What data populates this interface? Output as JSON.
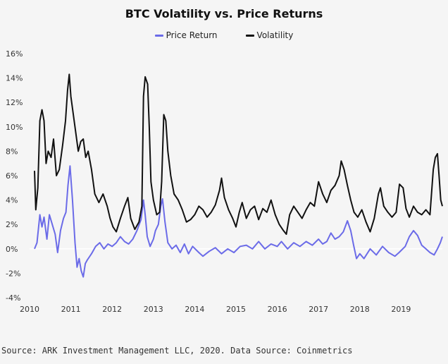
{
  "colors": {
    "background": "#f5f5f5",
    "price_return": "#6b6be8",
    "volatility": "#111111",
    "axis_text": "#333333",
    "zero_line": "#ffffff"
  },
  "chart_data": {
    "type": "line",
    "title": "BTC Volatility vs. Price Returns",
    "xlabel": "",
    "ylabel": "",
    "xlim": [
      2010.0,
      2020.0
    ],
    "ylim": [
      -4,
      16
    ],
    "x_ticks": [
      2010,
      2011,
      2012,
      2013,
      2014,
      2015,
      2016,
      2017,
      2018,
      2019
    ],
    "y_ticks": [
      -4,
      -2,
      0,
      2,
      4,
      6,
      8,
      10,
      12,
      14,
      16
    ],
    "y_tick_labels": [
      "-4%",
      "-2%",
      "0%",
      "2%",
      "4%",
      "6%",
      "8%",
      "10%",
      "12%",
      "14%",
      "16%"
    ],
    "grid": false,
    "legend_position": "top-center",
    "series": [
      {
        "name": "Price Return",
        "color": "#6b6be8",
        "points": [
          [
            2010.12,
            0.0
          ],
          [
            2010.18,
            0.5
          ],
          [
            2010.25,
            2.8
          ],
          [
            2010.3,
            1.8
          ],
          [
            2010.35,
            2.6
          ],
          [
            2010.42,
            0.8
          ],
          [
            2010.48,
            2.8
          ],
          [
            2010.55,
            2.0
          ],
          [
            2010.62,
            1.2
          ],
          [
            2010.68,
            -0.3
          ],
          [
            2010.75,
            1.5
          ],
          [
            2010.82,
            2.5
          ],
          [
            2010.88,
            3.0
          ],
          [
            2010.93,
            5.2
          ],
          [
            2010.98,
            6.8
          ],
          [
            2011.04,
            4.0
          ],
          [
            2011.1,
            0.5
          ],
          [
            2011.15,
            -1.5
          ],
          [
            2011.2,
            -0.8
          ],
          [
            2011.25,
            -1.8
          ],
          [
            2011.3,
            -2.3
          ],
          [
            2011.35,
            -1.2
          ],
          [
            2011.4,
            -0.9
          ],
          [
            2011.5,
            -0.4
          ],
          [
            2011.6,
            0.2
          ],
          [
            2011.7,
            0.5
          ],
          [
            2011.8,
            0.0
          ],
          [
            2011.9,
            0.4
          ],
          [
            2012.0,
            0.2
          ],
          [
            2012.1,
            0.5
          ],
          [
            2012.2,
            1.0
          ],
          [
            2012.3,
            0.6
          ],
          [
            2012.4,
            0.4
          ],
          [
            2012.5,
            0.8
          ],
          [
            2012.6,
            1.5
          ],
          [
            2012.7,
            2.4
          ],
          [
            2012.76,
            4.0
          ],
          [
            2012.8,
            2.8
          ],
          [
            2012.85,
            1.0
          ],
          [
            2012.92,
            0.2
          ],
          [
            2013.0,
            0.8
          ],
          [
            2013.05,
            1.5
          ],
          [
            2013.12,
            2.0
          ],
          [
            2013.18,
            3.5
          ],
          [
            2013.22,
            4.1
          ],
          [
            2013.28,
            2.2
          ],
          [
            2013.35,
            0.5
          ],
          [
            2013.45,
            0.0
          ],
          [
            2013.55,
            0.3
          ],
          [
            2013.65,
            -0.3
          ],
          [
            2013.75,
            0.4
          ],
          [
            2013.85,
            -0.4
          ],
          [
            2013.95,
            0.2
          ],
          [
            2014.1,
            -0.3
          ],
          [
            2014.2,
            -0.6
          ],
          [
            2014.35,
            -0.2
          ],
          [
            2014.5,
            0.1
          ],
          [
            2014.65,
            -0.4
          ],
          [
            2014.8,
            0.0
          ],
          [
            2014.95,
            -0.3
          ],
          [
            2015.1,
            0.2
          ],
          [
            2015.25,
            0.3
          ],
          [
            2015.4,
            0.0
          ],
          [
            2015.55,
            0.6
          ],
          [
            2015.7,
            0.0
          ],
          [
            2015.85,
            0.4
          ],
          [
            2016.0,
            0.2
          ],
          [
            2016.1,
            0.6
          ],
          [
            2016.25,
            0.0
          ],
          [
            2016.4,
            0.5
          ],
          [
            2016.55,
            0.2
          ],
          [
            2016.7,
            0.6
          ],
          [
            2016.85,
            0.3
          ],
          [
            2017.0,
            0.8
          ],
          [
            2017.1,
            0.4
          ],
          [
            2017.2,
            0.6
          ],
          [
            2017.3,
            1.3
          ],
          [
            2017.4,
            0.8
          ],
          [
            2017.5,
            1.0
          ],
          [
            2017.6,
            1.4
          ],
          [
            2017.7,
            2.3
          ],
          [
            2017.78,
            1.5
          ],
          [
            2017.85,
            0.3
          ],
          [
            2017.92,
            -0.8
          ],
          [
            2018.0,
            -0.4
          ],
          [
            2018.1,
            -0.8
          ],
          [
            2018.25,
            0.0
          ],
          [
            2018.4,
            -0.5
          ],
          [
            2018.55,
            0.2
          ],
          [
            2018.7,
            -0.3
          ],
          [
            2018.85,
            -0.6
          ],
          [
            2018.95,
            -0.3
          ],
          [
            2019.1,
            0.2
          ],
          [
            2019.2,
            1.0
          ],
          [
            2019.3,
            1.5
          ],
          [
            2019.4,
            1.1
          ],
          [
            2019.5,
            0.3
          ],
          [
            2019.6,
            0.0
          ],
          [
            2019.7,
            -0.3
          ],
          [
            2019.8,
            -0.5
          ],
          [
            2019.88,
            0.0
          ],
          [
            2019.95,
            0.5
          ],
          [
            2020.0,
            1.0
          ]
        ]
      },
      {
        "name": "Volatility",
        "color": "#111111",
        "points": [
          [
            2010.12,
            6.4
          ],
          [
            2010.15,
            3.2
          ],
          [
            2010.2,
            5.0
          ],
          [
            2010.25,
            10.5
          ],
          [
            2010.3,
            11.4
          ],
          [
            2010.35,
            10.5
          ],
          [
            2010.4,
            7.0
          ],
          [
            2010.45,
            8.0
          ],
          [
            2010.52,
            7.5
          ],
          [
            2010.58,
            9.0
          ],
          [
            2010.65,
            6.0
          ],
          [
            2010.72,
            6.5
          ],
          [
            2010.8,
            8.5
          ],
          [
            2010.87,
            10.5
          ],
          [
            2010.92,
            13.0
          ],
          [
            2010.96,
            14.3
          ],
          [
            2011.0,
            12.5
          ],
          [
            2011.06,
            11.0
          ],
          [
            2011.12,
            9.5
          ],
          [
            2011.18,
            8.0
          ],
          [
            2011.24,
            8.8
          ],
          [
            2011.3,
            9.0
          ],
          [
            2011.36,
            7.5
          ],
          [
            2011.42,
            8.0
          ],
          [
            2011.5,
            6.5
          ],
          [
            2011.58,
            4.5
          ],
          [
            2011.68,
            3.8
          ],
          [
            2011.78,
            4.5
          ],
          [
            2011.88,
            3.5
          ],
          [
            2011.95,
            2.5
          ],
          [
            2012.02,
            1.8
          ],
          [
            2012.1,
            1.4
          ],
          [
            2012.2,
            2.5
          ],
          [
            2012.3,
            3.5
          ],
          [
            2012.38,
            4.2
          ],
          [
            2012.45,
            2.5
          ],
          [
            2012.55,
            1.6
          ],
          [
            2012.65,
            2.2
          ],
          [
            2012.72,
            3.5
          ],
          [
            2012.76,
            12.5
          ],
          [
            2012.8,
            14.1
          ],
          [
            2012.86,
            13.5
          ],
          [
            2012.9,
            10.0
          ],
          [
            2012.94,
            5.5
          ],
          [
            2013.0,
            4.0
          ],
          [
            2013.08,
            2.8
          ],
          [
            2013.15,
            3.0
          ],
          [
            2013.2,
            5.5
          ],
          [
            2013.25,
            11.0
          ],
          [
            2013.3,
            10.5
          ],
          [
            2013.35,
            8.0
          ],
          [
            2013.42,
            6.0
          ],
          [
            2013.5,
            4.5
          ],
          [
            2013.6,
            4.0
          ],
          [
            2013.7,
            3.2
          ],
          [
            2013.8,
            2.2
          ],
          [
            2013.9,
            2.4
          ],
          [
            2014.0,
            2.8
          ],
          [
            2014.1,
            3.5
          ],
          [
            2014.2,
            3.2
          ],
          [
            2014.3,
            2.6
          ],
          [
            2014.4,
            3.0
          ],
          [
            2014.5,
            3.6
          ],
          [
            2014.6,
            4.8
          ],
          [
            2014.65,
            5.8
          ],
          [
            2014.72,
            4.2
          ],
          [
            2014.82,
            3.2
          ],
          [
            2014.92,
            2.5
          ],
          [
            2015.0,
            1.8
          ],
          [
            2015.08,
            3.0
          ],
          [
            2015.15,
            3.8
          ],
          [
            2015.25,
            2.5
          ],
          [
            2015.35,
            3.2
          ],
          [
            2015.45,
            3.5
          ],
          [
            2015.55,
            2.4
          ],
          [
            2015.65,
            3.3
          ],
          [
            2015.75,
            3.0
          ],
          [
            2015.85,
            4.0
          ],
          [
            2015.95,
            2.8
          ],
          [
            2016.05,
            2.0
          ],
          [
            2016.15,
            1.5
          ],
          [
            2016.22,
            1.2
          ],
          [
            2016.3,
            2.8
          ],
          [
            2016.4,
            3.5
          ],
          [
            2016.5,
            3.0
          ],
          [
            2016.6,
            2.5
          ],
          [
            2016.7,
            3.2
          ],
          [
            2016.8,
            3.8
          ],
          [
            2016.9,
            3.5
          ],
          [
            2017.0,
            5.5
          ],
          [
            2017.1,
            4.5
          ],
          [
            2017.2,
            3.8
          ],
          [
            2017.3,
            4.8
          ],
          [
            2017.4,
            5.2
          ],
          [
            2017.5,
            6.0
          ],
          [
            2017.55,
            7.2
          ],
          [
            2017.62,
            6.5
          ],
          [
            2017.7,
            5.2
          ],
          [
            2017.78,
            4.0
          ],
          [
            2017.86,
            3.0
          ],
          [
            2017.95,
            2.6
          ],
          [
            2018.05,
            3.2
          ],
          [
            2018.15,
            2.2
          ],
          [
            2018.25,
            1.4
          ],
          [
            2018.35,
            2.5
          ],
          [
            2018.45,
            4.5
          ],
          [
            2018.5,
            5.0
          ],
          [
            2018.58,
            3.5
          ],
          [
            2018.68,
            3.0
          ],
          [
            2018.78,
            2.6
          ],
          [
            2018.88,
            3.0
          ],
          [
            2018.96,
            5.3
          ],
          [
            2019.05,
            5.0
          ],
          [
            2019.12,
            3.3
          ],
          [
            2019.2,
            2.6
          ],
          [
            2019.3,
            3.5
          ],
          [
            2019.4,
            3.0
          ],
          [
            2019.5,
            2.8
          ],
          [
            2019.6,
            3.2
          ],
          [
            2019.7,
            2.8
          ],
          [
            2019.78,
            6.5
          ],
          [
            2019.83,
            7.5
          ],
          [
            2019.88,
            7.8
          ],
          [
            2019.92,
            6.0
          ],
          [
            2019.96,
            4.0
          ],
          [
            2020.0,
            3.5
          ]
        ]
      }
    ]
  },
  "legend": {
    "items": [
      {
        "label": "Price Return"
      },
      {
        "label": "Volatility"
      }
    ]
  },
  "source_text": "Source: ARK Investment Management LLC, 2020. Data Source: Coinmetrics"
}
